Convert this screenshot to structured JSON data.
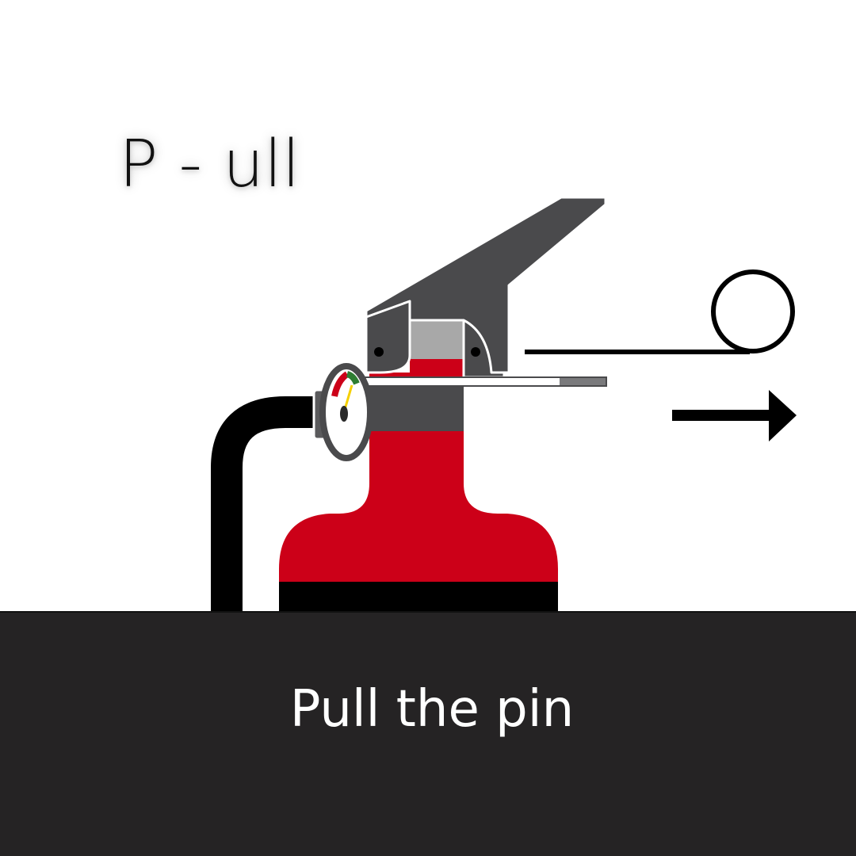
{
  "step": {
    "title": "P - ull"
  },
  "footer": {
    "caption": "Pull the pin"
  },
  "colors": {
    "background": "#ffffff",
    "footer_background": "#252324",
    "extinguisher_red": "#cc0018",
    "handle_gray": "#4a4a4c",
    "neck_gray": "#a8a8a8",
    "hose_black": "#000000",
    "gauge_green": "#2e7d32",
    "gauge_yellow": "#f5d000",
    "gauge_red": "#cc0018"
  },
  "icons": {
    "extinguisher": "fire-extinguisher-icon",
    "pin_ring": "pull-pin-ring-icon",
    "direction_arrow": "right-arrow-icon",
    "pressure_gauge": "pressure-gauge-icon"
  }
}
